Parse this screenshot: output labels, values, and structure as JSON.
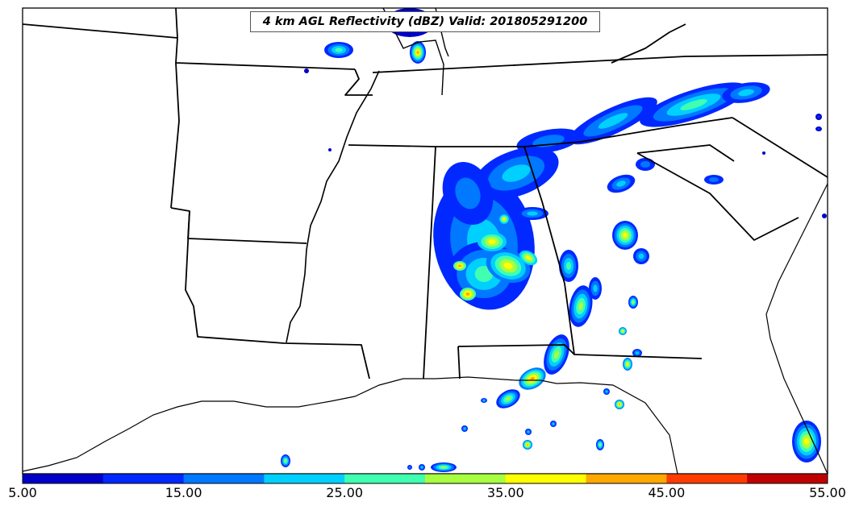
{
  "title": "4 km AGL Reflectivity (dBZ) Valid: 201805291200",
  "colorbar": {
    "colors": [
      "#0000c8",
      "#0028ff",
      "#0078ff",
      "#00d0ff",
      "#40ffb0",
      "#a8ff40",
      "#ffff00",
      "#ffa800",
      "#ff3c00",
      "#c00000"
    ],
    "labels": [
      "5.00",
      "15.00",
      "25.00",
      "35.00",
      "45.00",
      "55.00"
    ]
  }
}
